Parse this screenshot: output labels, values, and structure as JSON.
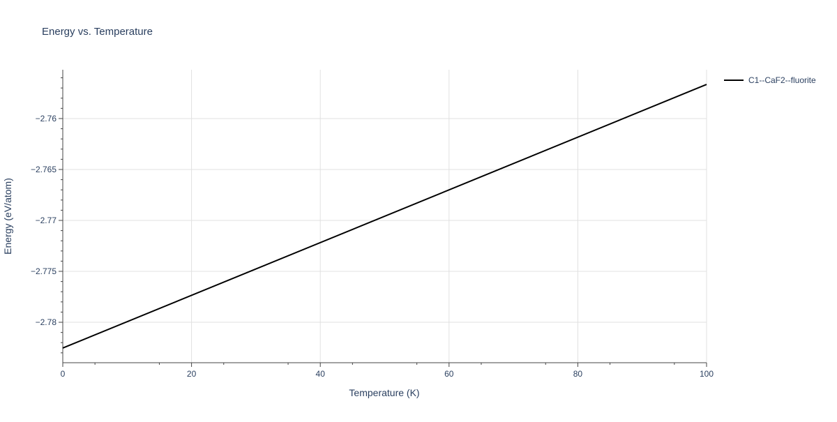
{
  "chart_data": {
    "type": "line",
    "title": "Energy vs. Temperature",
    "xlabel": "Temperature (K)",
    "ylabel": "Energy (eV/atom)",
    "xlim": [
      0,
      100
    ],
    "ylim": [
      -2.78397,
      -2.75521
    ],
    "xticks": [
      0,
      20,
      40,
      60,
      80,
      100
    ],
    "xtick_labels": [
      "0",
      "20",
      "40",
      "60",
      "80",
      "100"
    ],
    "yticks": [
      -2.78,
      -2.775,
      -2.77,
      -2.765,
      -2.76
    ],
    "ytick_labels": [
      "−2.78",
      "−2.775",
      "−2.77",
      "−2.765",
      "−2.76"
    ],
    "grid": true,
    "legend_position": "top-right",
    "series": [
      {
        "name": "C1--CaF2--fluorite",
        "color": "#000000",
        "x": [
          0,
          100
        ],
        "y": [
          -2.78253,
          -2.75665
        ]
      }
    ]
  }
}
